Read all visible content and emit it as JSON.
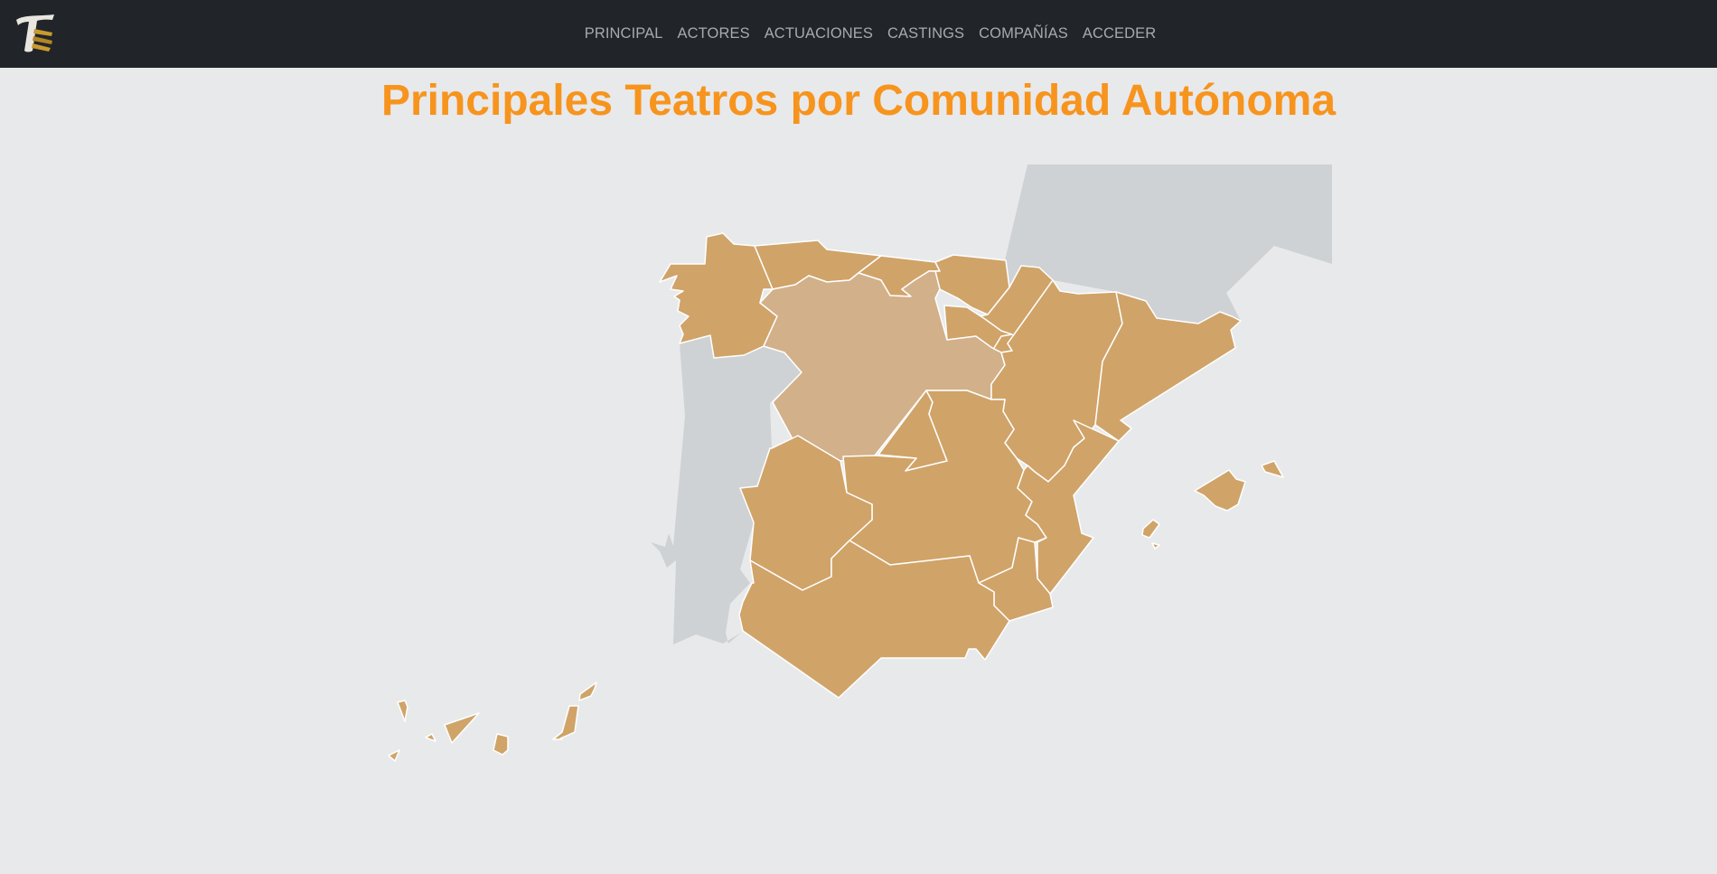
{
  "brand": {
    "logo_icon": "theatre-t-logo-icon"
  },
  "nav": {
    "items": [
      {
        "label": "PRINCIPAL"
      },
      {
        "label": "ACTORES"
      },
      {
        "label": "ACTUACIONES"
      },
      {
        "label": "CASTINGS"
      },
      {
        "label": "COMPAÑÍAS"
      },
      {
        "label": "ACCEDER"
      }
    ]
  },
  "page": {
    "title": "Principales Teatros por Comunidad Autónoma"
  },
  "map": {
    "regions": [
      {
        "name": "galicia",
        "highlighted": false
      },
      {
        "name": "asturias",
        "highlighted": false
      },
      {
        "name": "cantabria",
        "highlighted": false
      },
      {
        "name": "pais-vasco",
        "highlighted": false
      },
      {
        "name": "navarra",
        "highlighted": false
      },
      {
        "name": "la-rioja",
        "highlighted": false
      },
      {
        "name": "castilla-y-leon",
        "highlighted": true
      },
      {
        "name": "aragon",
        "highlighted": false
      },
      {
        "name": "cataluna",
        "highlighted": false
      },
      {
        "name": "madrid",
        "highlighted": false
      },
      {
        "name": "castilla-la-mancha",
        "highlighted": false
      },
      {
        "name": "extremadura",
        "highlighted": false
      },
      {
        "name": "comunidad-valenciana",
        "highlighted": false
      },
      {
        "name": "murcia",
        "highlighted": false
      },
      {
        "name": "andalucia",
        "highlighted": false
      },
      {
        "name": "islas-baleares",
        "highlighted": false
      },
      {
        "name": "canarias",
        "highlighted": false
      }
    ],
    "colors": {
      "region": "#d0a368",
      "region_highlight": "#d2b08a",
      "border": "#ffffff",
      "neighbor": "#cfd2d4",
      "background": "#e8e9eb",
      "title": "#f7941d",
      "navbar": "#212529",
      "nav_link": "#a7aaad"
    }
  }
}
